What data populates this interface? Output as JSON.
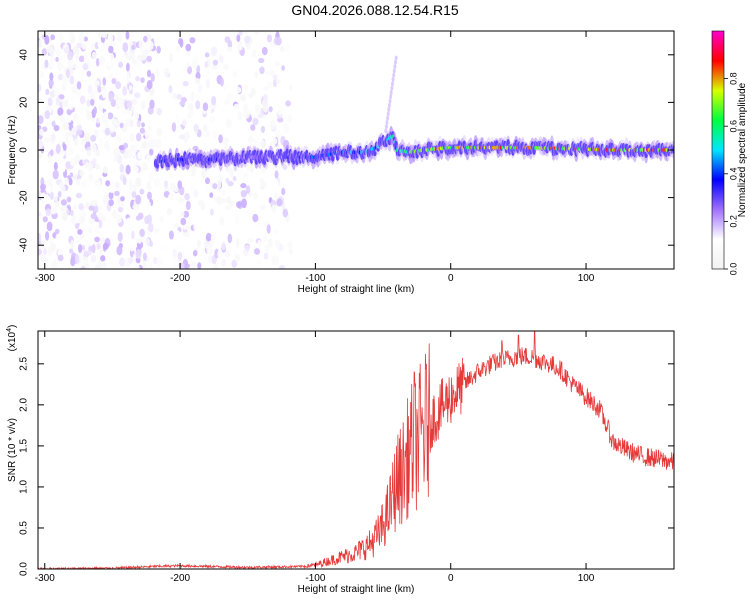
{
  "title": "GN04.2026.088.12.54.R15",
  "colors": {
    "spectrum_base": "#7a1fe0",
    "snr_line": "#e53a3a",
    "axis": "#000000",
    "background": "#ffffff"
  },
  "colormap_stops": [
    "#f2f2f2",
    "#ffffff",
    "#a070ff",
    "#0000ff",
    "#00e5ff",
    "#00ff40",
    "#d8ff00",
    "#ff0000",
    "#ff00cc"
  ],
  "chart_data": [
    {
      "type": "heatmap",
      "name": "spectrogram",
      "xlabel": "Height of straight line (km)",
      "ylabel": "Frequency (Hz)",
      "xlim": [
        -305,
        165
      ],
      "ylim": [
        -50,
        50
      ],
      "xticks": [
        -300,
        -200,
        -100,
        0,
        100
      ],
      "xtick_labels": [
        "-300",
        "-200",
        "-100",
        "0",
        "100"
      ],
      "yticks": [
        -40,
        -20,
        0,
        20,
        40
      ],
      "ytick_labels": [
        "-40",
        "-20",
        "0",
        "20",
        "40"
      ],
      "colorbar": {
        "label": "Normalized spectral amplitude",
        "range": [
          0,
          1
        ],
        "ticks": [
          0.0,
          0.2,
          0.4,
          0.6,
          0.8
        ],
        "tick_labels": [
          "0.0",
          "0.2",
          "0.4",
          "0.6",
          "0.8"
        ]
      },
      "noise_band": {
        "x_start": -305,
        "x_end": -118,
        "amplitude": 0.2
      },
      "signal_trace": {
        "x": [
          -218,
          -200,
          -175,
          -150,
          -125,
          -100,
          -80,
          -65,
          -55,
          -47,
          -43,
          -40,
          -30,
          -20,
          0,
          30,
          60,
          90,
          120,
          150,
          165
        ],
        "freq_hz": [
          -5,
          -4,
          -4,
          -3,
          -3,
          -3,
          -1,
          -1,
          1,
          4,
          6,
          0,
          -1,
          0,
          1,
          1,
          1,
          0.5,
          0,
          0,
          0
        ],
        "peak_amplitude": [
          0.4,
          0.35,
          0.35,
          0.3,
          0.3,
          0.45,
          0.45,
          0.5,
          0.55,
          0.6,
          0.55,
          0.55,
          0.7,
          0.75,
          0.8,
          0.85,
          0.8,
          0.85,
          0.9,
          0.95,
          0.95
        ]
      }
    },
    {
      "type": "line",
      "name": "snr",
      "ylabel": "SNR (10 * v/v)",
      "xlabel": "Height of straight line (km)",
      "multiplier_label": "(x10",
      "multiplier_exp": "4",
      "multiplier_close": ")",
      "xlim": [
        -305,
        165
      ],
      "ylim": [
        0,
        2.9
      ],
      "xticks": [
        -300,
        -200,
        -100,
        0,
        100
      ],
      "xtick_labels": [
        "-300",
        "-200",
        "-100",
        "0",
        "100"
      ],
      "yticks": [
        0.0,
        0.5,
        1.0,
        1.5,
        2.0,
        2.5
      ],
      "ytick_labels": [
        "0.0",
        "0.5",
        "1.0",
        "1.5",
        "2.0",
        "2.5"
      ],
      "series": [
        {
          "name": "SNR",
          "x": [
            -305,
            -250,
            -220,
            -200,
            -150,
            -110,
            -100,
            -90,
            -80,
            -70,
            -60,
            -52,
            -45,
            -40,
            -35,
            -30,
            -25,
            -20,
            -10,
            0,
            10,
            20,
            30,
            40,
            50,
            60,
            70,
            80,
            90,
            100,
            110,
            120,
            130,
            140,
            150,
            165
          ],
          "y": [
            0.0,
            0.01,
            0.03,
            0.04,
            0.02,
            0.03,
            0.05,
            0.1,
            0.15,
            0.2,
            0.3,
            0.45,
            0.75,
            1.05,
            1.2,
            1.45,
            1.55,
            1.7,
            1.9,
            2.1,
            2.25,
            2.4,
            2.5,
            2.55,
            2.6,
            2.58,
            2.52,
            2.45,
            2.25,
            2.1,
            1.95,
            1.55,
            1.45,
            1.38,
            1.35,
            1.3
          ],
          "spikes": [
            {
              "x": -27,
              "y": 2.4
            },
            {
              "x": -10,
              "y": 1.8
            },
            {
              "x": 50,
              "y": 2.85
            },
            {
              "x": 62,
              "y": 2.9
            },
            {
              "x": 38,
              "y": 2.78
            }
          ]
        }
      ]
    }
  ]
}
